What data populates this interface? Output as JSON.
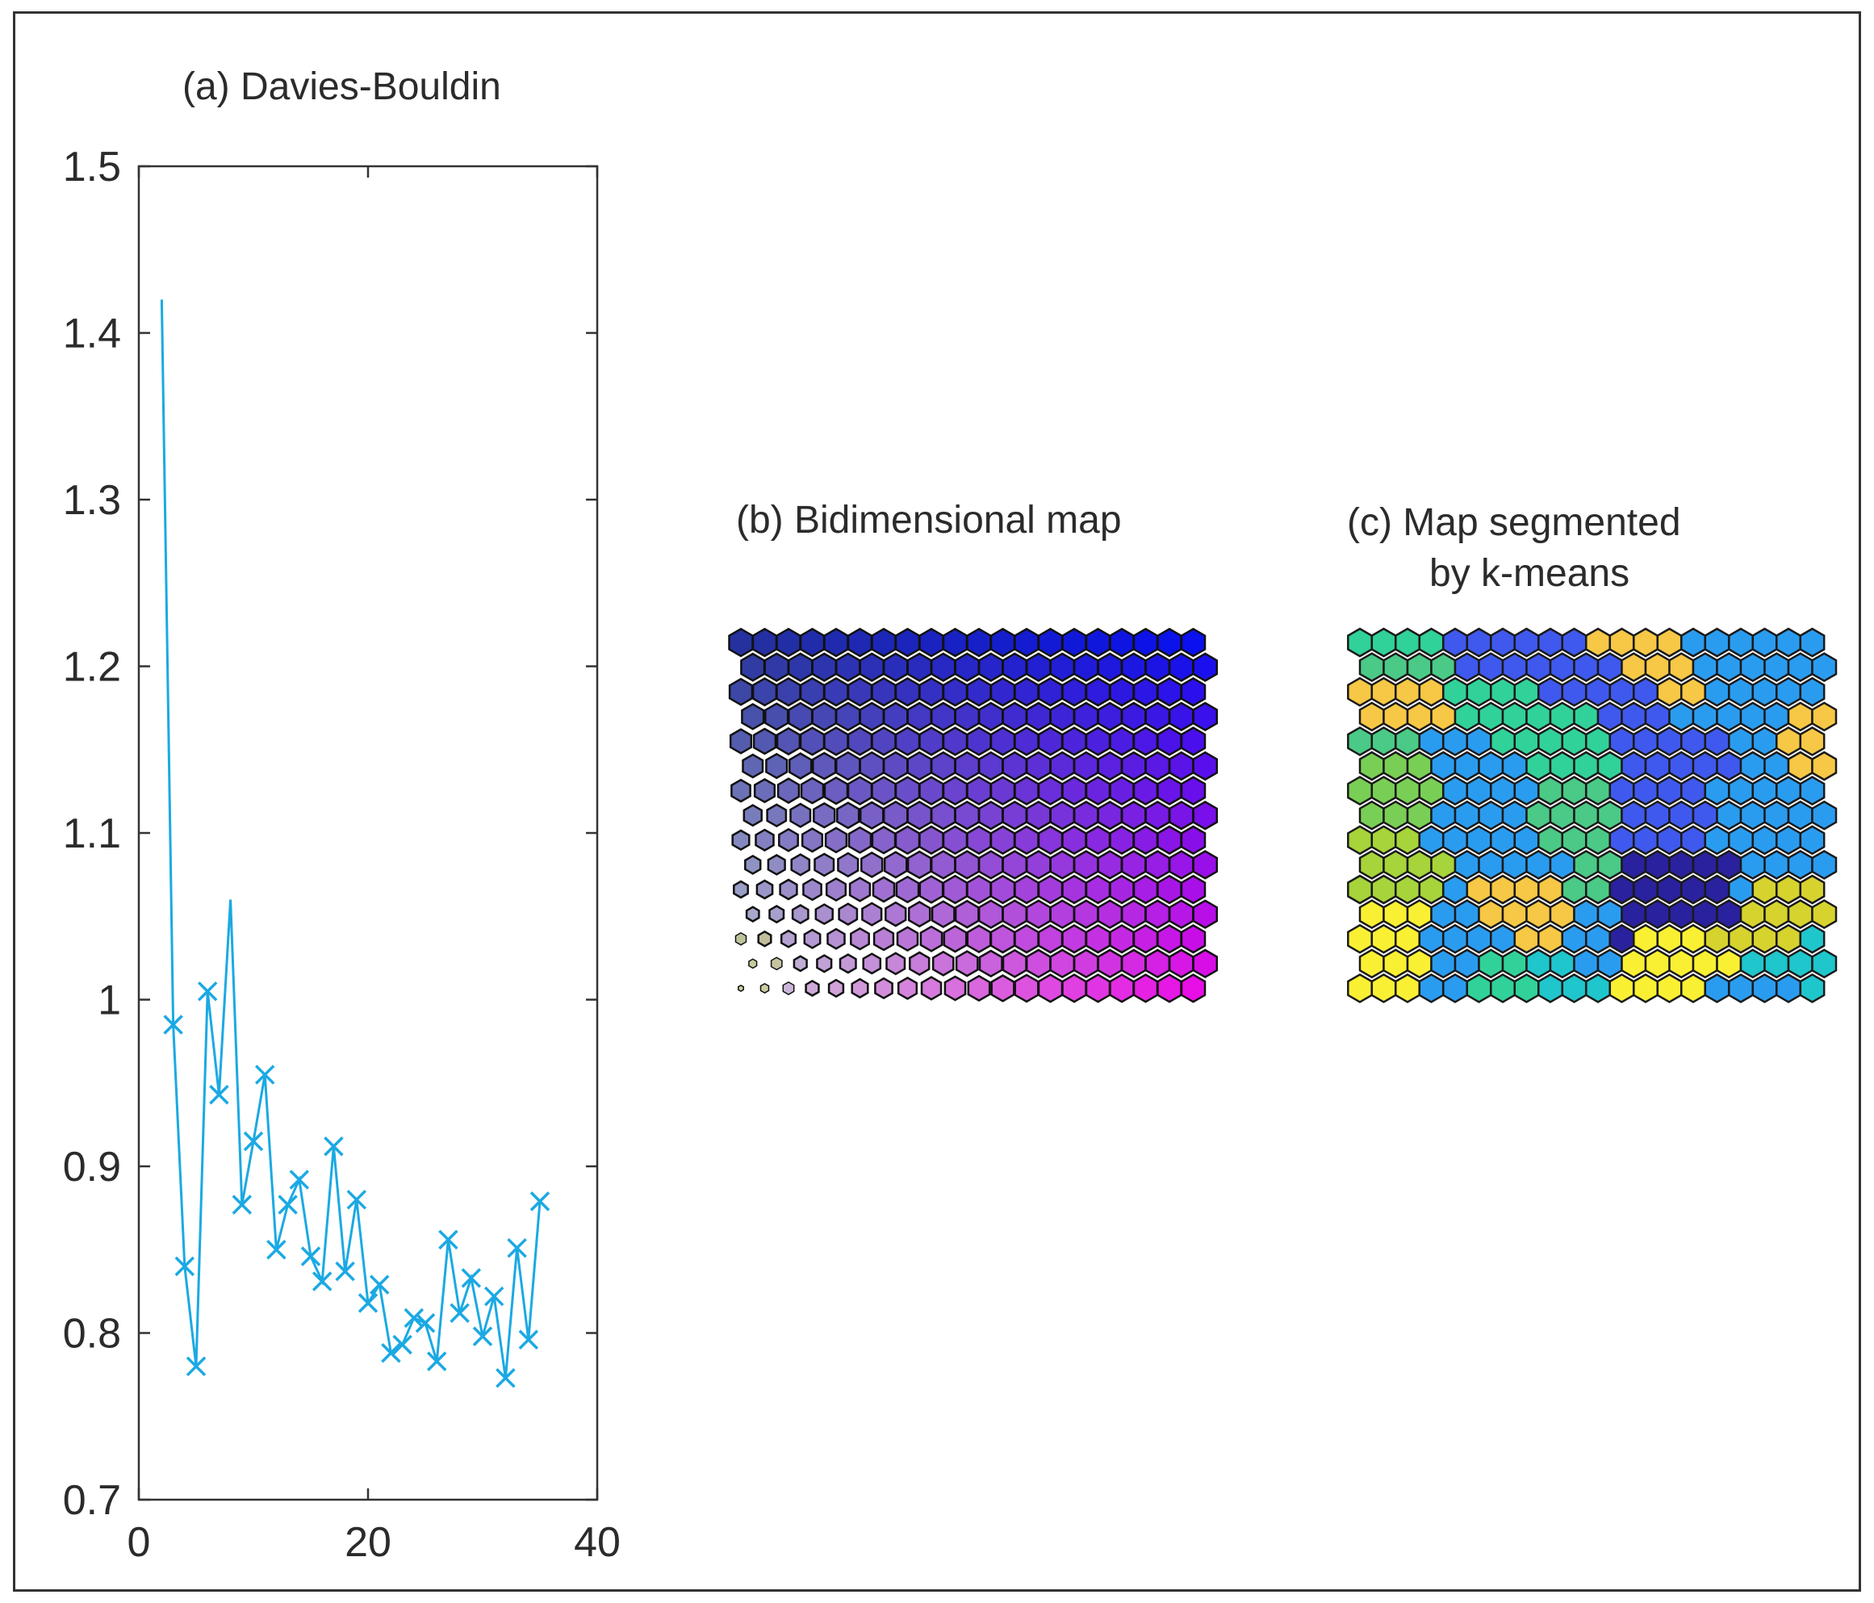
{
  "chart_data": [
    {
      "type": "line",
      "title": "(a) Davies-Bouldin",
      "xlabel": "",
      "ylabel": "",
      "xlim": [
        0,
        40
      ],
      "ylim": [
        0.7,
        1.5
      ],
      "xticks": [
        "0",
        "20",
        "40"
      ],
      "yticks": [
        "0.7",
        "0.8",
        "0.9",
        "1",
        "1.1",
        "1.2",
        "1.3",
        "1.4",
        "1.5"
      ],
      "marker": "x",
      "color": "#1ba9e3",
      "series": [
        {
          "name": "Davies-Bouldin",
          "x": [
            2,
            3,
            4,
            5,
            6,
            7,
            8,
            9,
            10,
            11,
            12,
            13,
            14,
            15,
            16,
            17,
            18,
            19,
            20,
            21,
            22,
            23,
            24,
            25,
            26,
            27,
            28,
            29,
            30,
            31,
            32,
            33,
            34,
            35
          ],
          "y": [
            1.42,
            0.985,
            0.84,
            0.78,
            1.005,
            0.943,
            1.06,
            0.877,
            0.915,
            0.955,
            0.85,
            0.877,
            0.892,
            0.846,
            0.831,
            0.912,
            0.837,
            0.88,
            0.818,
            0.829,
            0.788,
            0.793,
            0.809,
            0.806,
            0.783,
            0.856,
            0.812,
            0.833,
            0.798,
            0.822,
            0.773,
            0.851,
            0.796,
            0.879
          ]
        }
      ]
    },
    {
      "type": "heatmap",
      "title": "(b) Bidimensional map",
      "rows": 15,
      "cols": 20,
      "colors": {
        "top_left": "#25319e",
        "top_right": "#0a10ee",
        "bottom_left": "#c9c9d6",
        "bottom_right": "#e80ee6",
        "low_value": "#d8e040"
      }
    },
    {
      "type": "heatmap",
      "title_lines": [
        "(c) Map segmented",
        "by k-means"
      ],
      "rows": 15,
      "cols": 20,
      "palette": {
        "a": "#31d29a",
        "b": "#4aca86",
        "c": "#79cf55",
        "d": "#a6d43a",
        "e": "#faf033",
        "f": "#f7c845",
        "g": "#d6d32f",
        "h": "#1fc6cc",
        "i": "#2a9cf0",
        "j": "#3f59ee",
        "k": "#2f2fcc",
        "l": "#2a219e",
        "m": "#24c5df"
      },
      "clusters": [
        "aaaajjjjjjffffiiiiii",
        "bbbbjjjjjjjfffiiiiii",
        "ffffaaaajjjjjffiiiii",
        "ffffaaaaaajjjiiiiiff",
        "bbbiiiaaaaajjjjjiiff",
        "ccciiiiaaaajjjjjiiff",
        "cccciiiibbbjjjjiiiii",
        "ccciiiibbbbjjjjiiiii",
        "dddiiiiibbbjjjjiiiii",
        "ddddiiiiibbllllliiii",
        "ddddiffffbbllllliggg",
        "eeeiiffffiilllllgggg",
        "eeeiiiiffiileeeggggh",
        "eeeiiaahhiieeeeehhhh",
        "eeeiiaaahhheeeeiiiih"
      ]
    }
  ]
}
